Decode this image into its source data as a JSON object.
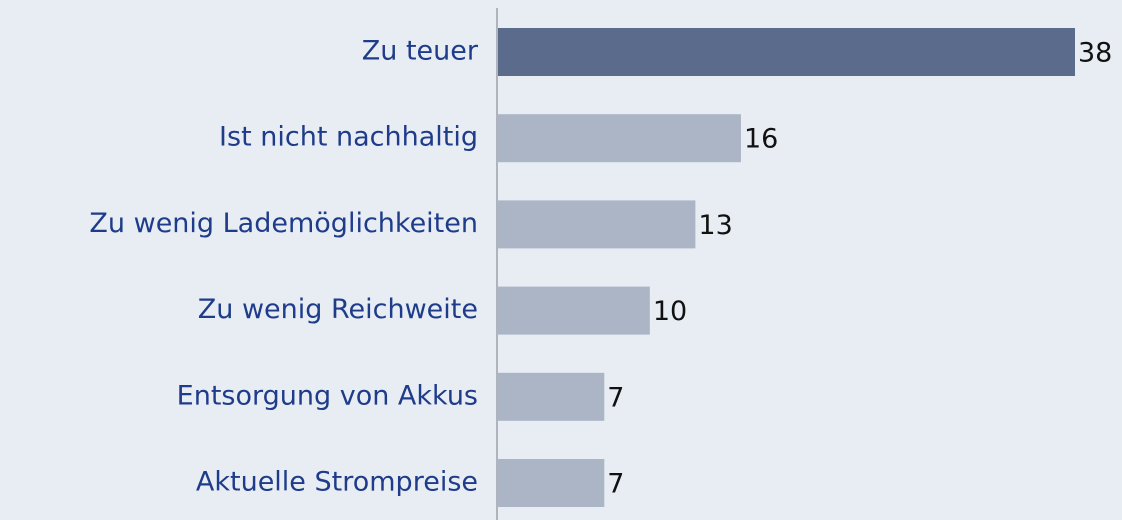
{
  "chart_data": {
    "type": "bar",
    "categories": [
      "Zu teuer",
      "Ist nicht nachhaltig",
      "Zu wenig Lademöglichkeiten",
      "Zu wenig Reichweite",
      "Entsorgung von Akkus",
      "Aktuelle Strompreise"
    ],
    "values": [
      38,
      16,
      13,
      10,
      7,
      7
    ],
    "colors": [
      "#5b6b8b",
      "#abb5c6",
      "#abb5c6",
      "#abb5c6",
      "#abb5c6",
      "#abb5c6"
    ]
  }
}
